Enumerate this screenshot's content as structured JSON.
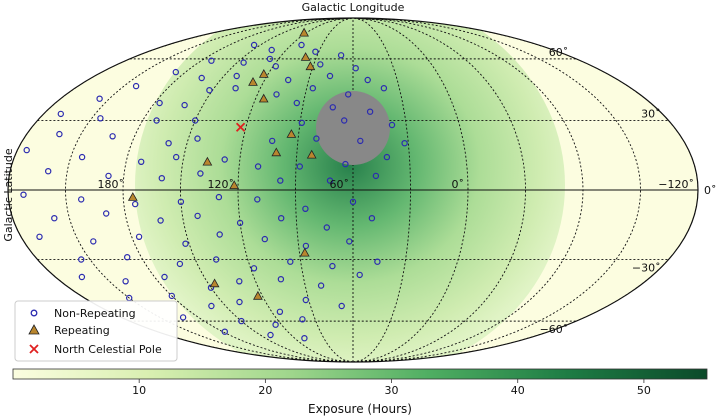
{
  "chart_data": {
    "type": "scatter",
    "projection": "mollweide",
    "xlabel": "Galactic Longitude",
    "ylabel": "Galactic Latitude",
    "longitude_tick_labels": [
      "−120˚",
      "180˚",
      "120˚",
      "60˚",
      "0˚"
    ],
    "longitude_ticks_deg": [
      -120,
      180,
      120,
      60,
      0
    ],
    "latitude_tick_labels": [
      "60˚",
      "30˚",
      "0˚",
      "−30˚",
      "−60˚"
    ],
    "latitude_ticks_deg": [
      60,
      30,
      0,
      -30,
      -60
    ],
    "grid": true,
    "legend": {
      "placement": "lower-left",
      "entries": [
        {
          "label": "Non-Repeating",
          "marker": "circle",
          "color": "#2b2bb0"
        },
        {
          "label": "Repeating",
          "marker": "triangle",
          "color": "#b9862e"
        },
        {
          "label": "North Celestial Pole",
          "marker": "x",
          "color": "#e02020"
        }
      ]
    },
    "colorbar": {
      "label": "Exposure (Hours)",
      "range": [
        0,
        55
      ],
      "ticks": [
        10,
        20,
        30,
        40,
        50
      ],
      "tick_labels": [
        "10",
        "20",
        "30",
        "40",
        "50"
      ],
      "colors": [
        "#fbfde0",
        "#d8efb0",
        "#9fd68c",
        "#4fae62",
        "#1e7c44",
        "#0b4a2a"
      ]
    },
    "special_markers": {
      "north_celestial_pole": {
        "lon": 123,
        "lat": 27
      },
      "unobservable_region_color": "#888888"
    },
    "series": [
      {
        "name": "Repeating",
        "marker": "triangle",
        "points": [
          [
            123,
            76
          ],
          [
            99,
            61
          ],
          [
            92,
            56
          ],
          [
            123,
            52
          ],
          [
            127,
            48
          ],
          [
            115,
            40
          ],
          [
            101,
            16
          ],
          [
            94,
            24
          ],
          [
            82,
            15
          ],
          [
            137,
            12
          ],
          [
            122,
            2
          ],
          [
            175,
            -3
          ],
          [
            87,
            -27
          ],
          [
            146,
            -41
          ],
          [
            123,
            -47
          ]
        ]
      },
      {
        "name": "Non-Repeating",
        "marker": "circle",
        "points": [
          [
            156,
            68
          ],
          [
            133,
            65
          ],
          [
            110,
            68
          ],
          [
            93,
            64
          ],
          [
            70,
            62
          ],
          [
            172,
            59
          ],
          [
            145,
            58
          ],
          [
            127,
            60
          ],
          [
            118,
            56
          ],
          [
            85,
            57
          ],
          [
            58,
            55
          ],
          [
            -173,
            53
          ],
          [
            164,
            50
          ],
          [
            141,
            51
          ],
          [
            104,
            49
          ],
          [
            76,
            51
          ],
          [
            50,
            49
          ],
          [
            -158,
            46
          ],
          [
            152,
            44
          ],
          [
            136,
            45
          ],
          [
            108,
            42
          ],
          [
            86,
            45
          ],
          [
            63,
            42
          ],
          [
            40,
            45
          ],
          [
            -144,
            40
          ],
          [
            177,
            38
          ],
          [
            161,
            37
          ],
          [
            94,
            38
          ],
          [
            72,
            36
          ],
          [
            50,
            34
          ],
          [
            -130,
            33
          ],
          [
            -155,
            31
          ],
          [
            172,
            30
          ],
          [
            150,
            30
          ],
          [
            89,
            29
          ],
          [
            65,
            30
          ],
          [
            38,
            28
          ],
          [
            -138,
            24
          ],
          [
            -168,
            23
          ],
          [
            160,
            20
          ],
          [
            145,
            22
          ],
          [
            104,
            21
          ],
          [
            80,
            22
          ],
          [
            56,
            21
          ],
          [
            32,
            20
          ],
          [
            -125,
            17
          ],
          [
            -156,
            14
          ],
          [
            172,
            12
          ],
          [
            154,
            14
          ],
          [
            128,
            13
          ],
          [
            110,
            10
          ],
          [
            88,
            10
          ],
          [
            64,
            11
          ],
          [
            42,
            14
          ],
          [
            -140,
            8
          ],
          [
            -172,
            6
          ],
          [
            160,
            5
          ],
          [
            140,
            7
          ],
          [
            98,
            4
          ],
          [
            72,
            4
          ],
          [
            48,
            6
          ],
          [
            -128,
            -2
          ],
          [
            -158,
            -4
          ],
          [
            174,
            -6
          ],
          [
            150,
            -5
          ],
          [
            130,
            -3
          ],
          [
            110,
            -4
          ],
          [
            85,
            -8
          ],
          [
            60,
            -5
          ],
          [
            -142,
            -12
          ],
          [
            -170,
            -10
          ],
          [
            162,
            -13
          ],
          [
            142,
            -11
          ],
          [
            120,
            -14
          ],
          [
            98,
            -12
          ],
          [
            74,
            -16
          ],
          [
            50,
            -12
          ],
          [
            -130,
            -20
          ],
          [
            -158,
            -22
          ],
          [
            176,
            -20
          ],
          [
            152,
            -23
          ],
          [
            132,
            -19
          ],
          [
            108,
            -21
          ],
          [
            86,
            -24
          ],
          [
            62,
            -22
          ],
          [
            -145,
            -30
          ],
          [
            -172,
            -29
          ],
          [
            160,
            -32
          ],
          [
            138,
            -30
          ],
          [
            118,
            -34
          ],
          [
            96,
            -31
          ],
          [
            72,
            -33
          ],
          [
            46,
            -31
          ],
          [
            -136,
            -38
          ],
          [
            -160,
            -40
          ],
          [
            174,
            -38
          ],
          [
            150,
            -43
          ],
          [
            130,
            -40
          ],
          [
            104,
            -39
          ],
          [
            80,
            -42
          ],
          [
            56,
            -37
          ],
          [
            -150,
            -48
          ],
          [
            180,
            -47
          ],
          [
            160,
            -52
          ],
          [
            138,
            -50
          ],
          [
            114,
            -55
          ],
          [
            92,
            -49
          ],
          [
            68,
            -52
          ],
          [
            -168,
            -58
          ],
          [
            150,
            -60
          ],
          [
            125,
            -62
          ],
          [
            100,
            -59
          ],
          [
            178,
            -66
          ],
          [
            140,
            -68
          ],
          [
            110,
            -70
          ]
        ]
      }
    ]
  }
}
